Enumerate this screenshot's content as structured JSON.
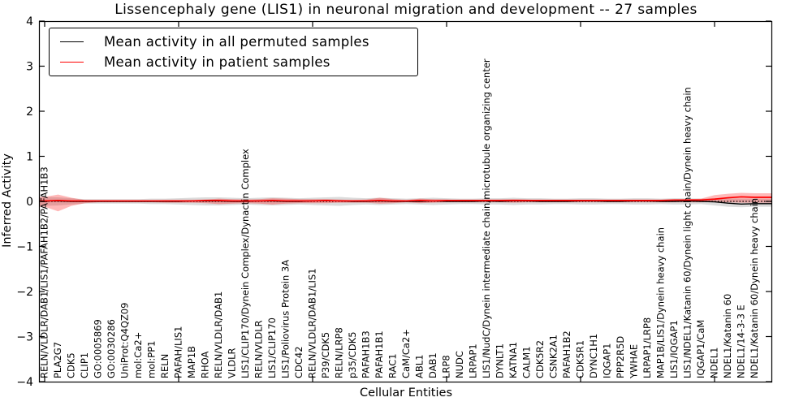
{
  "chart_data": {
    "type": "line",
    "title": "Lissencephaly gene (LIS1) in neuronal migration and development -- 27 samples",
    "xlabel": "Cellular Entities",
    "ylabel": "Inferred Activity",
    "ylim": [
      -4,
      4
    ],
    "yticks": [
      4,
      3,
      2,
      1,
      0,
      -1,
      -2,
      -3,
      -4
    ],
    "xtick_every": 10,
    "grid": false,
    "zero_line_style": "dotted",
    "legend_position": "upper left",
    "categories": [
      "RELN/VLDLR/DAB1/LIS1/PAFAH1B2/PAFAH1B3",
      "PLA2G7",
      "CDK5",
      "CLIP1",
      "GO:0005869",
      "GO:0030286",
      "UniProt:Q4QZ09",
      "mol:Ca2+",
      "mol:PP1",
      "RELN",
      "PAFAH/LIS1",
      "MAP1B",
      "RHOA",
      "RELN/VLDLR/DAB1",
      "VLDLR",
      "LIS1/CLIP170/Dynein Complex/Dynactin Complex",
      "RELN/VLDLR",
      "LIS1/CLIP170",
      "LIS1/Poliovirus Protein 3A",
      "CDC42",
      "RELN/VLDLR/DAB1/LIS1",
      "P39/CDK5",
      "RELN/LRP8",
      "p35/CDK5",
      "PAFAH1B3",
      "PAFAH1B1",
      "RAC1",
      "CaM/Ca2+",
      "ABL1",
      "DAB1",
      "LRP8",
      "NUDC",
      "LRPAP1",
      "LIS1/NudC/Dynein intermediate chain/microtubule organizing center",
      "DYNLT1",
      "KATNA1",
      "CALM1",
      "CDK5R2",
      "CSNK2A1",
      "PAFAH1B2",
      "CDK5R1",
      "DYNC1H1",
      "IQGAP1",
      "PPP2R5D",
      "YWHAE",
      "LRPAP1/LRP8",
      "MAP1B/LIS1/Dynein heavy chain",
      "LIS1/IQGAP1",
      "LIS1/NDEL1/Katanin 60/Dynein light chain/Dynein heavy chain",
      "IQGAP1/CaM",
      "NDEL1",
      "NDEL1/Katanin 60",
      "NDEL1/14-3-3 E",
      "NDEL1/Katanin 60/Dynein heavy chain"
    ],
    "series": [
      {
        "id": "permuted",
        "name": "Mean activity in all permuted samples",
        "color": "#000000",
        "band_color": "rgba(0,0,0,0.14)",
        "values": [
          0.01,
          0.01,
          0,
          0,
          0,
          0,
          0,
          0,
          0,
          0,
          0,
          0.01,
          0.01,
          0.01,
          0,
          0,
          0.01,
          0.01,
          0,
          0,
          0.01,
          0.02,
          0.01,
          0,
          0,
          0.01,
          0,
          0,
          0,
          0.01,
          0,
          0,
          0,
          0.01,
          0,
          0.01,
          0.01,
          0,
          0,
          0,
          0.01,
          0.01,
          0,
          0,
          0.01,
          0.01,
          0,
          0,
          0.01,
          0,
          -0.01,
          -0.04,
          -0.06,
          -0.05
        ],
        "band_upper": [
          0.1,
          0.09,
          0.07,
          0.05,
          0.05,
          0.05,
          0.05,
          0.05,
          0.06,
          0.06,
          0.07,
          0.08,
          0.09,
          0.09,
          0.08,
          0.07,
          0.08,
          0.09,
          0.08,
          0.07,
          0.08,
          0.09,
          0.1,
          0.08,
          0.07,
          0.08,
          0.07,
          0.06,
          0.07,
          0.08,
          0.07,
          0.06,
          0.06,
          0.07,
          0.07,
          0.08,
          0.07,
          0.07,
          0.06,
          0.06,
          0.07,
          0.07,
          0.06,
          0.06,
          0.07,
          0.07,
          0.06,
          0.07,
          0.07,
          0.06,
          0.07,
          0.07,
          0.06,
          0.06
        ],
        "band_lower": [
          -0.1,
          -0.09,
          -0.07,
          -0.05,
          -0.05,
          -0.05,
          -0.05,
          -0.05,
          -0.06,
          -0.06,
          -0.07,
          -0.08,
          -0.09,
          -0.09,
          -0.08,
          -0.07,
          -0.08,
          -0.09,
          -0.08,
          -0.07,
          -0.08,
          -0.09,
          -0.1,
          -0.08,
          -0.07,
          -0.08,
          -0.07,
          -0.06,
          -0.07,
          -0.08,
          -0.07,
          -0.06,
          -0.06,
          -0.07,
          -0.07,
          -0.08,
          -0.07,
          -0.07,
          -0.06,
          -0.06,
          -0.07,
          -0.07,
          -0.06,
          -0.06,
          -0.07,
          -0.07,
          -0.06,
          -0.07,
          -0.07,
          -0.06,
          -0.09,
          -0.12,
          -0.13,
          -0.12
        ]
      },
      {
        "id": "patient",
        "name": "Mean activity in patient samples",
        "color": "#ff0000",
        "band_color": "rgba(255,0,0,0.28)",
        "values": [
          0.01,
          0.02,
          0.01,
          0.01,
          0.01,
          0.01,
          0.01,
          0.01,
          0.01,
          0.01,
          0.01,
          0.01,
          0.02,
          0.02,
          0.01,
          0.01,
          0.01,
          0.02,
          0.01,
          0.01,
          0.01,
          0.02,
          0.01,
          0.01,
          0.01,
          0.02,
          0.01,
          0.01,
          0.02,
          0.01,
          0.02,
          0.02,
          0.02,
          0.02,
          0.02,
          0.02,
          0.02,
          0.02,
          0.02,
          0.02,
          0.02,
          0.02,
          0.02,
          0.02,
          0.02,
          0.02,
          0.02,
          0.03,
          0.03,
          0.03,
          0.05,
          0.08,
          0.1,
          0.09
        ],
        "band_upper": [
          0.1,
          0.15,
          0.08,
          0.03,
          0.02,
          0.02,
          0.02,
          0.02,
          0.02,
          0.03,
          0.03,
          0.03,
          0.04,
          0.06,
          0.05,
          0.04,
          0.05,
          0.07,
          0.06,
          0.05,
          0.05,
          0.05,
          0.04,
          0.03,
          0.04,
          0.08,
          0.05,
          0.03,
          0.06,
          0.05,
          0.04,
          0.03,
          0.03,
          0.04,
          0.04,
          0.05,
          0.04,
          0.03,
          0.03,
          0.03,
          0.03,
          0.03,
          0.03,
          0.03,
          0.03,
          0.03,
          0.03,
          0.04,
          0.05,
          0.06,
          0.14,
          0.17,
          0.19,
          0.18
        ],
        "band_lower": [
          -0.12,
          -0.22,
          -0.1,
          -0.04,
          -0.02,
          -0.02,
          -0.02,
          -0.02,
          -0.02,
          -0.03,
          -0.03,
          -0.03,
          -0.04,
          -0.06,
          -0.05,
          -0.04,
          -0.05,
          -0.07,
          -0.05,
          -0.04,
          -0.04,
          -0.04,
          -0.03,
          -0.03,
          -0.03,
          -0.05,
          -0.04,
          -0.02,
          -0.04,
          -0.03,
          -0.02,
          -0.02,
          -0.02,
          -0.02,
          -0.02,
          -0.03,
          -0.02,
          -0.02,
          -0.02,
          -0.02,
          -0.02,
          -0.02,
          -0.02,
          -0.02,
          -0.02,
          -0.02,
          -0.02,
          -0.02,
          -0.02,
          -0.02,
          -0.01,
          -0.02,
          -0.03,
          -0.03
        ]
      }
    ]
  }
}
